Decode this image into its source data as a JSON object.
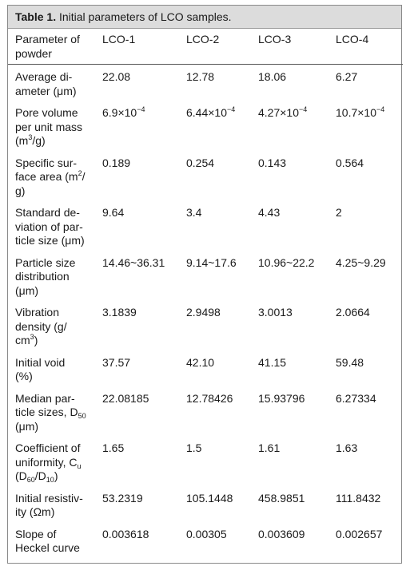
{
  "table": {
    "label": "Table 1.",
    "title": "Initial parameters of LCO samples.",
    "header": {
      "param": [
        "Parameter of",
        "powder"
      ],
      "samples": [
        "LCO-1",
        "LCO-2",
        "LCO-3",
        "LCO-4"
      ]
    },
    "rows": [
      {
        "param": [
          "Average di-",
          "ameter (",
          "μ",
          "m)"
        ],
        "values": [
          "22.08",
          "12.78",
          "18.06",
          "6.27"
        ]
      },
      {
        "param": [
          "Pore volume",
          "per unit mass",
          "(m",
          "3",
          "/g)"
        ],
        "values": [
          [
            "6.9×10",
            "−4"
          ],
          [
            "6.44×10",
            "−4"
          ],
          [
            "4.27×10",
            "−4"
          ],
          [
            "10.7×10",
            "−4"
          ]
        ]
      },
      {
        "param": [
          "Specific sur-",
          "face area (m",
          "2",
          "/",
          "g)"
        ],
        "values": [
          "0.189",
          "0.254",
          "0.143",
          "0.564"
        ]
      },
      {
        "param": [
          "Standard de-",
          "viation of par-",
          "ticle size (",
          "μ",
          "m)"
        ],
        "values": [
          "9.64",
          "3.4",
          "4.43",
          "2"
        ]
      },
      {
        "param": [
          "Particle size",
          "distribution",
          "(",
          "μ",
          "m)"
        ],
        "values": [
          "14.46~36.31",
          "9.14~17.6",
          "10.96~22.2",
          "4.25~9.29"
        ]
      },
      {
        "param": [
          "Vibration",
          "density (g/",
          "cm",
          "3",
          ")"
        ],
        "values": [
          "3.1839",
          "2.9498",
          "3.0013",
          "2.0664"
        ]
      },
      {
        "param": [
          "Initial void",
          "(%)"
        ],
        "values": [
          "37.57",
          "42.10",
          "41.15",
          "59.48"
        ]
      },
      {
        "param": [
          "Median par-",
          "ticle sizes, D",
          "50",
          "(",
          "μ",
          "m)"
        ],
        "values": [
          "22.08185",
          "12.78426",
          "15.93796",
          "6.27334"
        ]
      },
      {
        "param": [
          "Coefficient of",
          "uniformity, C",
          "u",
          "(D",
          "60",
          "/D",
          "10",
          ")"
        ],
        "values": [
          "1.65",
          "1.5",
          "1.61",
          "1.63"
        ]
      },
      {
        "param": [
          "Initial resistiv-",
          "ity (",
          "Ω",
          "m)"
        ],
        "values": [
          "53.2319",
          "105.1448",
          "458.9851",
          "111.8432"
        ]
      },
      {
        "param": [
          "Slope of",
          "Heckel curve"
        ],
        "values": [
          "0.003618",
          "0.00305",
          "0.003609",
          "0.002657"
        ]
      }
    ]
  }
}
